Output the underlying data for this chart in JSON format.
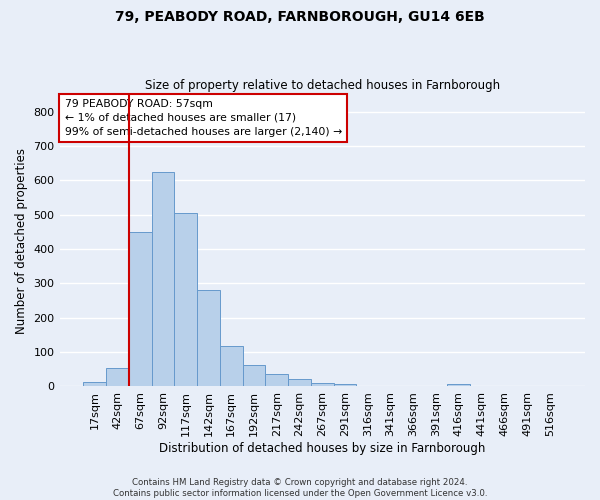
{
  "title1": "79, PEABODY ROAD, FARNBOROUGH, GU14 6EB",
  "title2": "Size of property relative to detached houses in Farnborough",
  "xlabel": "Distribution of detached houses by size in Farnborough",
  "ylabel": "Number of detached properties",
  "bar_color": "#b8d0ea",
  "bar_edge_color": "#6699cc",
  "categories": [
    "17sqm",
    "42sqm",
    "67sqm",
    "92sqm",
    "117sqm",
    "142sqm",
    "167sqm",
    "192sqm",
    "217sqm",
    "242sqm",
    "267sqm",
    "291sqm",
    "316sqm",
    "341sqm",
    "366sqm",
    "391sqm",
    "416sqm",
    "441sqm",
    "466sqm",
    "491sqm",
    "516sqm"
  ],
  "values": [
    12,
    55,
    450,
    625,
    505,
    282,
    118,
    62,
    37,
    22,
    10,
    8,
    0,
    0,
    0,
    0,
    8,
    0,
    0,
    0,
    0
  ],
  "ylim": [
    0,
    850
  ],
  "yticks": [
    0,
    100,
    200,
    300,
    400,
    500,
    600,
    700,
    800
  ],
  "vline_x": 1.5,
  "vline_color": "#cc0000",
  "annotation_text": "79 PEABODY ROAD: 57sqm\n← 1% of detached houses are smaller (17)\n99% of semi-detached houses are larger (2,140) →",
  "annotation_box_color": "#ffffff",
  "annotation_box_edge": "#cc0000",
  "footer_text": "Contains HM Land Registry data © Crown copyright and database right 2024.\nContains public sector information licensed under the Open Government Licence v3.0.",
  "background_color": "#e8eef8",
  "grid_color": "#ffffff"
}
